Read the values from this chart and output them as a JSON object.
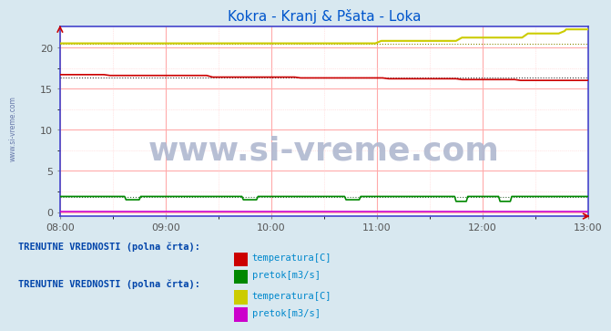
{
  "title": "Kokra - Kranj & Pšata - Loka",
  "title_color": "#0055cc",
  "bg_color": "#d8e8f0",
  "plot_bg_color": "#ffffff",
  "plot_border_color": "#4444cc",
  "xlim": [
    0,
    360
  ],
  "ylim": [
    -0.5,
    22.5
  ],
  "yticks": [
    0,
    5,
    10,
    15,
    20
  ],
  "xtick_labels": [
    "08:00",
    "09:00",
    "10:00",
    "11:00",
    "12:00",
    "13:00"
  ],
  "xtick_positions": [
    0,
    72,
    144,
    216,
    288,
    360
  ],
  "watermark_text": "www.si-vreme.com",
  "watermark_color": "#b0b8d0",
  "watermark_fontsize": 26,
  "kokra_temp_color": "#cc0000",
  "kokra_pretok_color": "#008800",
  "psata_temp_color": "#cccc00",
  "psata_pretok_color": "#cc00cc",
  "ref_line_color": "#444444",
  "legend1_title": "TRENUTNE VREDNOSTI (polna črta):",
  "legend1_items": [
    {
      "label": "temperatura[C]",
      "color": "#cc0000"
    },
    {
      "label": "pretok[m3/s]",
      "color": "#008800"
    }
  ],
  "legend2_title": "TRENUTNE VREDNOSTI (polna črta):",
  "legend2_items": [
    {
      "label": "temperatura[C]",
      "color": "#cccc00"
    },
    {
      "label": "pretok[m3/s]",
      "color": "#cc00cc"
    }
  ],
  "legend_title_color": "#0044aa",
  "legend_label_color": "#0088cc",
  "sivremecom_color": "#6677aa"
}
